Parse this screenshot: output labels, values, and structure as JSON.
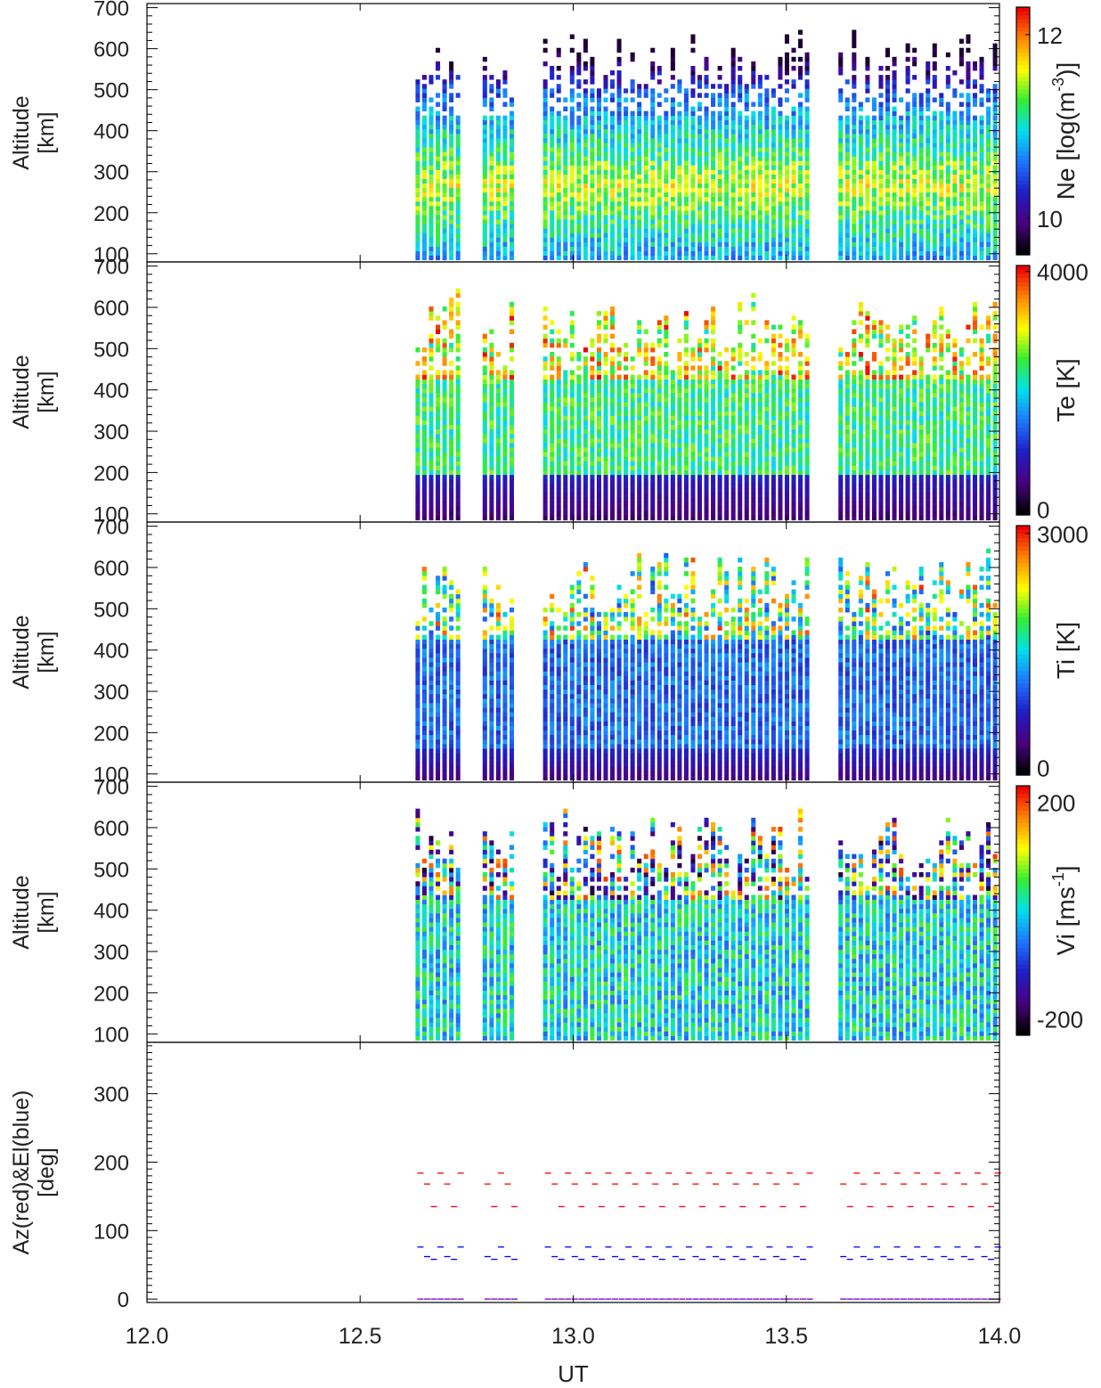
{
  "chart_data": {
    "type": "heatmap",
    "x_axis": {
      "label": "UT",
      "range": [
        12.0,
        14.0
      ],
      "ticks": [
        "12.0",
        "12.5",
        "13.0",
        "13.5",
        "14.0"
      ],
      "tick_values": [
        12.0,
        12.5,
        13.0,
        13.5,
        14.0
      ]
    },
    "data_start_ut": 12.63,
    "data_end_ut": 14.0,
    "data_gaps_ut": [
      [
        12.745,
        12.775
      ],
      [
        12.875,
        12.915
      ],
      [
        13.56,
        13.61
      ]
    ],
    "colorscale": [
      "#000000",
      "#4b0082",
      "#1f1fc8",
      "#1e78ff",
      "#00e0ee",
      "#33ee33",
      "#ffff00",
      "#ff8800",
      "#ee0000"
    ],
    "panels": [
      {
        "id": "ne",
        "ylabel": [
          "Altitude",
          "[km]"
        ],
        "yrange": [
          80,
          710
        ],
        "yticks": [
          100,
          200,
          300,
          400,
          500,
          600,
          700
        ],
        "colorbar": {
          "label": "Ne [log(m",
          "label_sup": "-3",
          "label_end": ")]",
          "min": 9.6,
          "max": 12.3,
          "tick_labels": [
            "12",
            "10"
          ],
          "tick_values": [
            12,
            10
          ]
        }
      },
      {
        "id": "te",
        "ylabel": [
          "Altitude",
          "[km]"
        ],
        "yrange": [
          80,
          710
        ],
        "yticks": [
          100,
          200,
          300,
          400,
          500,
          600,
          700
        ],
        "colorbar": {
          "label": "Te [K]",
          "min": -100,
          "max": 4100,
          "tick_labels": [
            "4000",
            "0"
          ],
          "tick_values": [
            4000,
            0
          ]
        }
      },
      {
        "id": "ti",
        "ylabel": [
          "Altitude",
          "[km]"
        ],
        "yrange": [
          80,
          710
        ],
        "yticks": [
          100,
          200,
          300,
          400,
          500,
          600,
          700
        ],
        "colorbar": {
          "label": "Ti [K]",
          "min": -100,
          "max": 3100,
          "tick_labels": [
            "3000",
            "0"
          ],
          "tick_values": [
            3000,
            0
          ]
        }
      },
      {
        "id": "vi",
        "ylabel": [
          "Altitude",
          "[km]"
        ],
        "yrange": [
          80,
          710
        ],
        "yticks": [
          100,
          200,
          300,
          400,
          500,
          600,
          700
        ],
        "colorbar": {
          "label": "Vi [ms",
          "label_sup": "-1",
          "label_end": "]",
          "min": -230,
          "max": 230,
          "tick_labels": [
            "200",
            "-200"
          ],
          "tick_values": [
            200,
            -200
          ]
        }
      },
      {
        "id": "azel",
        "ylabel": [
          "Az(red)&El(blue)",
          "[deg]"
        ],
        "yrange": [
          -5,
          375
        ],
        "yticks": [
          0,
          100,
          200,
          300
        ],
        "series": [
          {
            "color": "#ff0000",
            "levels": [
              184,
              168,
              135
            ]
          },
          {
            "color": "#0000ff",
            "levels": [
              76,
              62,
              58
            ]
          },
          {
            "color": "#7a00c8",
            "levels": [
              0
            ]
          }
        ]
      }
    ]
  }
}
